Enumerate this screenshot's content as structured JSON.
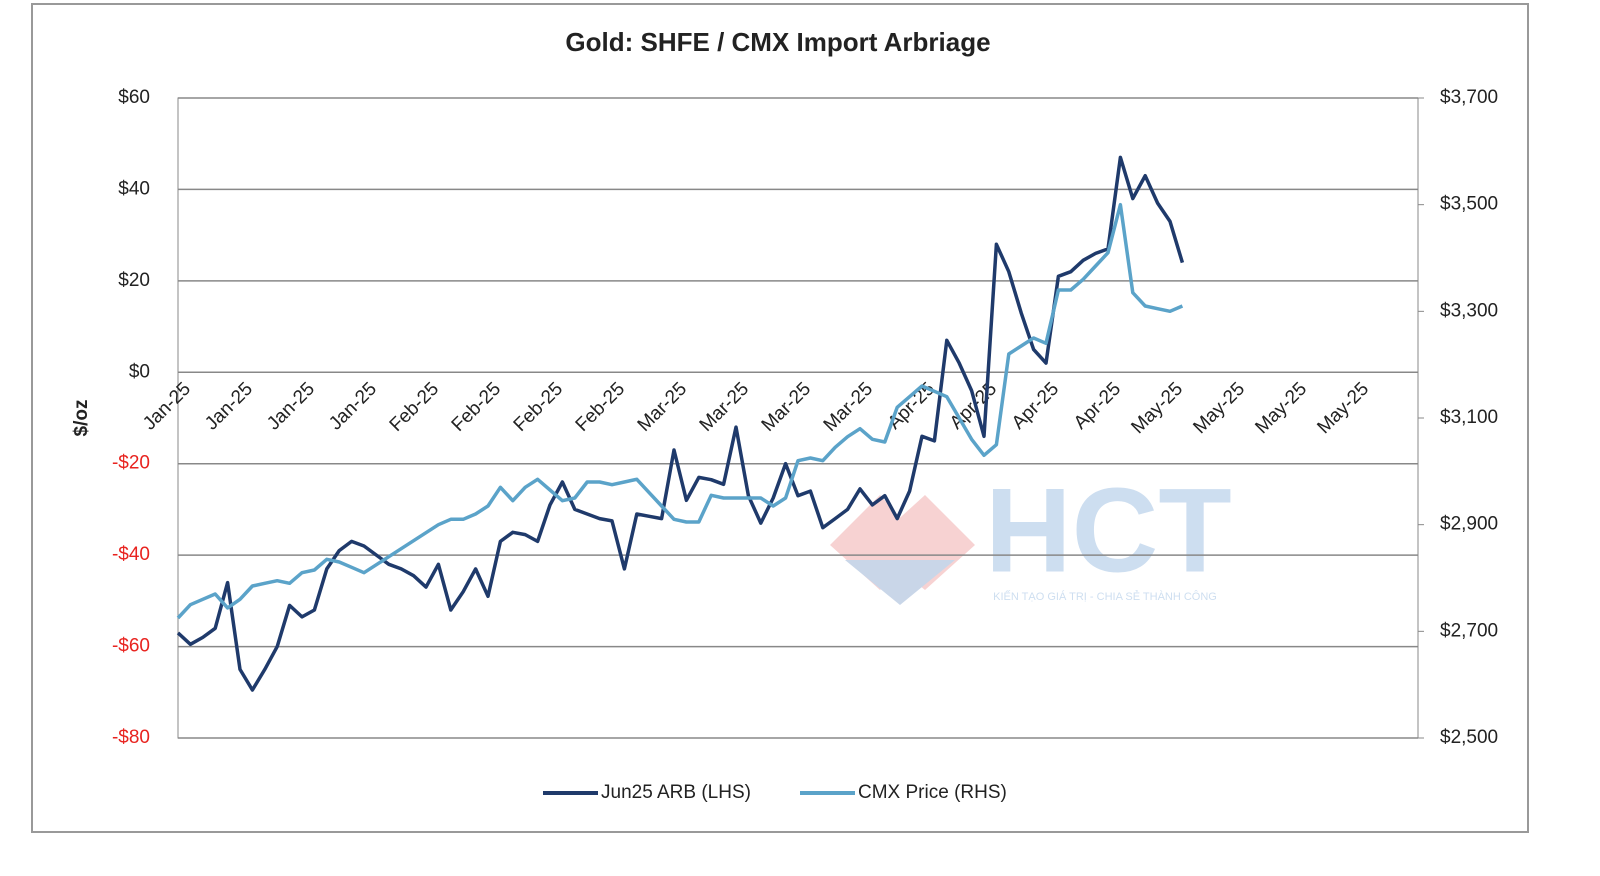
{
  "chart_data": {
    "type": "line",
    "title": "Gold: SHFE / CMX Import Arbriage",
    "ylabel": "$/oz",
    "categories": [
      "Jan-25",
      null,
      null,
      null,
      null,
      "Jan-25",
      null,
      null,
      null,
      null,
      "Jan-25",
      null,
      null,
      null,
      null,
      "Jan-25",
      null,
      null,
      null,
      null,
      "Feb-25",
      null,
      null,
      null,
      null,
      "Feb-25",
      null,
      null,
      null,
      null,
      "Feb-25",
      null,
      null,
      null,
      null,
      "Feb-25",
      null,
      null,
      null,
      null,
      "Mar-25",
      null,
      null,
      null,
      null,
      "Mar-25",
      null,
      null,
      null,
      null,
      "Mar-25",
      null,
      null,
      null,
      null,
      "Mar-25",
      null,
      null,
      null,
      null,
      "Apr-25",
      null,
      null,
      null,
      null,
      "Apr-25",
      null,
      null,
      null,
      null,
      "Apr-25",
      null,
      null,
      null,
      null,
      "Apr-25",
      null,
      null,
      null,
      null,
      "May-25",
      null,
      null,
      null,
      null,
      "May-25",
      null,
      null,
      null,
      null,
      "May-25",
      null,
      null,
      null,
      null,
      "May-25",
      null,
      null,
      null,
      null
    ],
    "series": [
      {
        "name": "Jun25 ARB (LHS)",
        "color": "#1f3a6b",
        "axis": "y",
        "values": [
          -57,
          -59.5,
          -58,
          -56,
          -46,
          -65,
          -69.5,
          -65,
          -60,
          -51,
          -53.5,
          -52,
          -43,
          -39,
          -37,
          -38,
          -40,
          -42,
          -43,
          -44.5,
          -47,
          -42,
          -52,
          -48,
          -43,
          -49,
          -37,
          -35,
          -35.5,
          -37,
          -29,
          -24,
          -30,
          -31,
          -32,
          -32.5,
          -43,
          -31,
          -31.5,
          -32,
          -17,
          -28,
          -23,
          -23.5,
          -24.5,
          -12,
          -27,
          -33,
          -27.5,
          -20,
          -27,
          -26,
          -34,
          -32,
          -30,
          -25.5,
          -29,
          -27,
          -32,
          -26,
          -14,
          -15,
          7,
          2,
          -4,
          -14,
          28,
          22,
          13,
          5,
          2,
          21,
          22,
          24.5,
          26,
          27,
          47,
          38,
          43,
          37,
          33,
          24,
          null,
          null,
          null,
          null,
          null,
          null,
          null,
          null,
          null,
          null,
          null,
          null,
          null,
          null,
          null,
          null,
          null,
          null
        ]
      },
      {
        "name": "CMX Price (RHS)",
        "color": "#5ba3c9",
        "axis": "y2",
        "values": [
          2725,
          2750,
          2760,
          2770,
          2744,
          2760,
          2785,
          2790,
          2795,
          2790,
          2810,
          2815,
          2835,
          2830,
          2820,
          2810,
          2825,
          2840,
          2855,
          2870,
          2885,
          2900,
          2910,
          2910,
          2920,
          2935,
          2970,
          2945,
          2970,
          2985,
          2965,
          2945,
          2950,
          2980,
          2980,
          2975,
          2980,
          2985,
          2960,
          2935,
          2910,
          2905,
          2905,
          2955,
          2950,
          2950,
          2950,
          2950,
          2935,
          2950,
          3020,
          3025,
          3020,
          3045,
          3065,
          3080,
          3060,
          3055,
          3120,
          3140,
          3160,
          3150,
          3140,
          3100,
          3060,
          3030,
          3050,
          3220,
          3235,
          3250,
          3240,
          3340,
          3340,
          3360,
          3385,
          3410,
          3500,
          3335,
          3310,
          3305,
          3300,
          3310,
          null,
          null,
          null,
          null,
          null,
          null,
          null,
          null,
          null,
          null,
          null,
          null,
          null,
          null,
          null,
          null,
          null,
          null
        ]
      }
    ],
    "ylim": [
      -80,
      60
    ],
    "yticks": [
      {
        "value": -80,
        "label": "-$80"
      },
      {
        "value": -60,
        "label": "-$60"
      },
      {
        "value": -40,
        "label": "-$40"
      },
      {
        "value": -20,
        "label": "-$20"
      },
      {
        "value": 0,
        "label": "$0"
      },
      {
        "value": 20,
        "label": "$20"
      },
      {
        "value": 40,
        "label": "$40"
      },
      {
        "value": 60,
        "label": "$60"
      }
    ],
    "y2lim": [
      2500,
      3700
    ],
    "y2ticks": [
      {
        "value": 2500,
        "label": "$2,500"
      },
      {
        "value": 2700,
        "label": "$2,700"
      },
      {
        "value": 2900,
        "label": "$2,900"
      },
      {
        "value": 3100,
        "label": "$3,100"
      },
      {
        "value": 3300,
        "label": "$3,300"
      },
      {
        "value": 3500,
        "label": "$3,500"
      },
      {
        "value": 3700,
        "label": "$3,700"
      }
    ],
    "negative_tick_color": "#e8231f",
    "grid": true,
    "legend": "bottom"
  },
  "watermark": {
    "logo": "HCT",
    "tagline": "KIẾN TẠO GIÁ TRỊ - CHIA SẺ THÀNH CÔNG"
  }
}
